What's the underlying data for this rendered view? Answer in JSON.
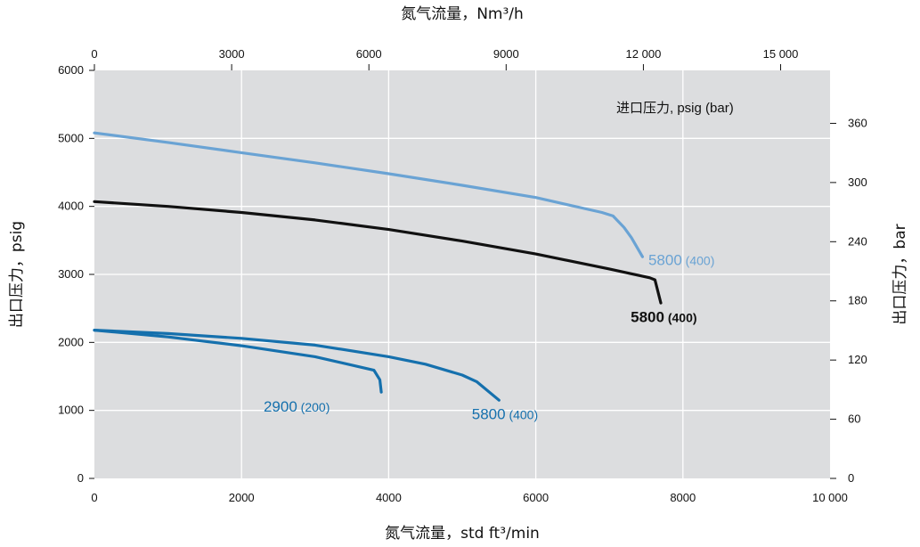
{
  "chart_data": {
    "type": "line",
    "title": "",
    "top_axis": {
      "label": "氮气流量，Nm³/h",
      "ticks": [
        0,
        3000,
        6000,
        9000,
        12000,
        15000
      ],
      "tick_labels": [
        "0",
        "3000",
        "6000",
        "9000",
        "12 000",
        "15 000"
      ]
    },
    "bottom_axis": {
      "label": "氮气流量，std ft³/min",
      "range": [
        0,
        10000
      ],
      "ticks": [
        0,
        2000,
        4000,
        6000,
        8000,
        10000
      ],
      "tick_labels": [
        "0",
        "2000",
        "4000",
        "6000",
        "8000",
        "10 000"
      ]
    },
    "left_axis": {
      "label": "出口压力，psig",
      "range": [
        0,
        6000
      ],
      "ticks": [
        0,
        1000,
        2000,
        3000,
        4000,
        5000,
        6000
      ],
      "tick_labels": [
        "0",
        "1000",
        "2000",
        "3000",
        "4000",
        "5000",
        "6000"
      ]
    },
    "right_axis": {
      "label": "出口压力，bar",
      "range": [
        0,
        413.7
      ],
      "ticks": [
        0,
        60,
        120,
        180,
        240,
        300,
        360
      ],
      "tick_labels": [
        "0",
        "60",
        "120",
        "180",
        "240",
        "300",
        "360"
      ]
    },
    "legend_title": "进口压力, psig (bar)",
    "grid": true,
    "series": [
      {
        "name": "5800 (400)",
        "label_main": "5800",
        "label_sub": " (400)",
        "color": "#6aa3d4",
        "points": [
          [
            0,
            5080
          ],
          [
            1000,
            4940
          ],
          [
            2000,
            4790
          ],
          [
            3000,
            4640
          ],
          [
            4000,
            4480
          ],
          [
            5000,
            4310
          ],
          [
            6000,
            4130
          ],
          [
            6900,
            3910
          ],
          [
            7050,
            3860
          ],
          [
            7200,
            3690
          ],
          [
            7300,
            3540
          ],
          [
            7450,
            3260
          ]
        ]
      },
      {
        "name": "5800 (400)",
        "label_main": "5800",
        "label_sub": " (400)",
        "color": "#111111",
        "points": [
          [
            0,
            4070
          ],
          [
            1000,
            4000
          ],
          [
            2000,
            3910
          ],
          [
            3000,
            3800
          ],
          [
            4000,
            3660
          ],
          [
            5000,
            3490
          ],
          [
            6000,
            3300
          ],
          [
            7000,
            3080
          ],
          [
            7550,
            2950
          ],
          [
            7620,
            2920
          ],
          [
            7700,
            2580
          ]
        ]
      },
      {
        "name": "5800 (400)",
        "label_main": "5800",
        "label_sub": " (400)",
        "color": "#1570ad",
        "points": [
          [
            0,
            2180
          ],
          [
            1000,
            2130
          ],
          [
            2000,
            2060
          ],
          [
            3000,
            1960
          ],
          [
            4000,
            1790
          ],
          [
            4500,
            1680
          ],
          [
            5000,
            1520
          ],
          [
            5200,
            1420
          ],
          [
            5500,
            1150
          ]
        ]
      },
      {
        "name": "2900 (200)",
        "label_main": "2900",
        "label_sub": " (200)",
        "color": "#1570ad",
        "points": [
          [
            0,
            2180
          ],
          [
            1000,
            2080
          ],
          [
            2000,
            1950
          ],
          [
            3000,
            1790
          ],
          [
            3800,
            1590
          ],
          [
            3880,
            1450
          ],
          [
            3900,
            1270
          ]
        ]
      }
    ]
  }
}
